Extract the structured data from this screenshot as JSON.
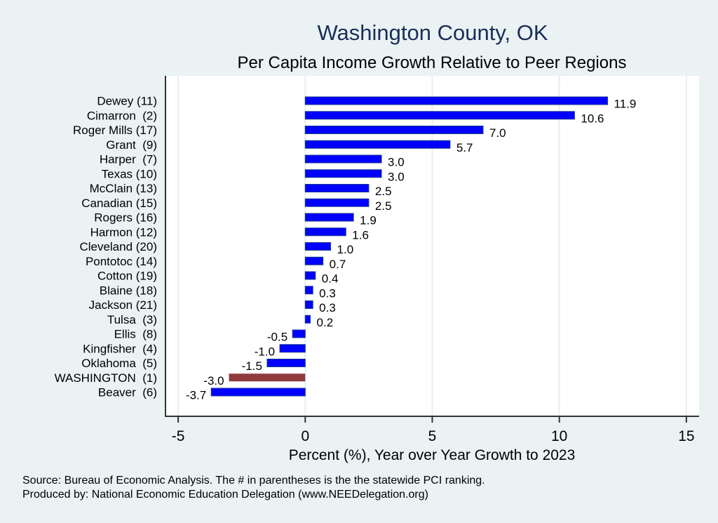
{
  "chart_data": {
    "type": "bar",
    "orientation": "horizontal",
    "title": "Washington County, OK",
    "subtitle": "Per Capita Income Growth Relative to Peer Regions",
    "xlabel": "Percent (%), Year over Year Growth to 2023",
    "ylabel": "",
    "xlim": [
      -5.5,
      15.5
    ],
    "xticks": [
      -5,
      0,
      5,
      10,
      15
    ],
    "xtick_labels": [
      "-5",
      "0",
      "5",
      "10",
      "15"
    ],
    "grid": true,
    "categories": [
      "Dewey (11)",
      "Cimarron  (2)",
      "Roger Mills (17)",
      "Grant  (9)",
      "Harper  (7)",
      "Texas (10)",
      "McClain (13)",
      "Canadian (15)",
      "Rogers (16)",
      "Harmon (12)",
      "Cleveland (20)",
      "Pontotoc (14)",
      "Cotton (19)",
      "Blaine (18)",
      "Jackson (21)",
      "Tulsa  (3)",
      "Ellis  (8)",
      "Kingfisher  (4)",
      "Oklahoma  (5)",
      "WASHINGTON  (1)",
      "Beaver  (6)"
    ],
    "values": [
      11.9,
      10.6,
      7.0,
      5.7,
      3.0,
      3.0,
      2.5,
      2.5,
      1.9,
      1.6,
      1.0,
      0.7,
      0.4,
      0.3,
      0.3,
      0.2,
      -0.5,
      -1.0,
      -1.5,
      -3.0,
      -3.7
    ],
    "value_labels": [
      "11.9",
      "10.6",
      "7.0",
      "5.7",
      "3.0",
      "3.0",
      "2.5",
      "2.5",
      "1.9",
      "1.6",
      "1.0",
      "0.7",
      "0.4",
      "0.3",
      "0.3",
      "0.2",
      "-0.5",
      "-1.0",
      "-1.5",
      "-3.0",
      "-3.7"
    ],
    "highlight": "WASHINGTON  (1)",
    "colors": {
      "bar": "#0000ff",
      "bar_edge": "#1a3a8c",
      "highlight": "#8f3a3d",
      "background": "#eaf2f3",
      "plot_background": "#ffffff",
      "grid": "#e6eef1",
      "title": "#1a2e5a"
    },
    "notes": [
      "Source: Bureau of Economic Analysis. The # in parentheses is the the statewide PCI ranking.",
      "Produced by: National Economic Education Delegation (www.NEEDelegation.org)"
    ]
  }
}
